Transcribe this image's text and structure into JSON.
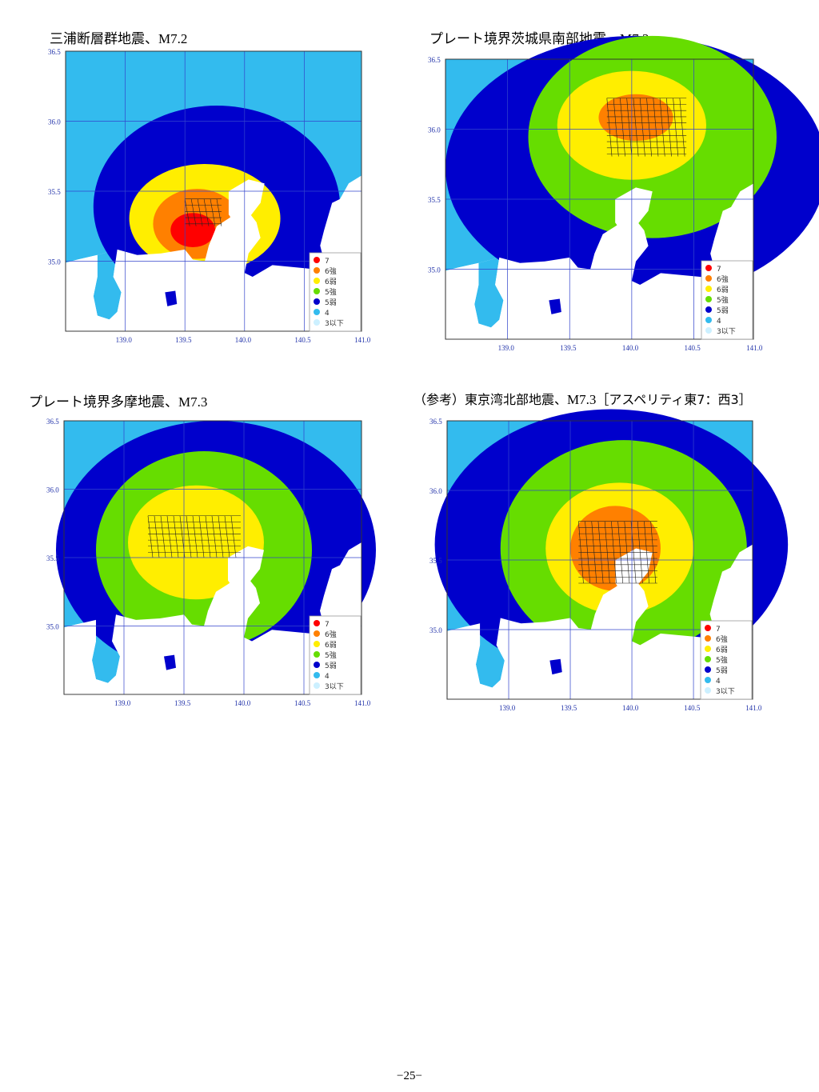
{
  "page_number": "−25−",
  "legend_items": [
    {
      "label": "7",
      "color": "#ff0000"
    },
    {
      "label": "6強",
      "color": "#ff8000"
    },
    {
      "label": "6弱",
      "color": "#ffee00"
    },
    {
      "label": "5強",
      "color": "#66dd00"
    },
    {
      "label": "5弱",
      "color": "#0000cc"
    },
    {
      "label": "4",
      "color": "#33bbee"
    },
    {
      "label": "3以下",
      "color": "#ccf0ff"
    }
  ],
  "colors": {
    "sea": "#ffffff",
    "grid": "#3344cc",
    "fault_grid": "#222222"
  },
  "maps": [
    {
      "title_jp": "三浦断層群地震、",
      "title_mag": "M7.2",
      "lon_ticks": [
        "139.0",
        "139.5",
        "140.0",
        "140.5",
        "141.0"
      ],
      "lat_ticks": [
        "36.5",
        "36.0",
        "35.5",
        "35.0"
      ],
      "icons": [
        "intensity-map",
        "fault-grid-icon"
      ]
    },
    {
      "title_jp": "プレート境界茨城県南部地震、",
      "title_mag": "M7.3",
      "lon_ticks": [
        "139.0",
        "139.5",
        "140.0",
        "140.5",
        "141.0"
      ],
      "lat_ticks": [
        "36.5",
        "36.0",
        "35.5",
        "35.0"
      ],
      "icons": [
        "intensity-map",
        "fault-grid-icon"
      ]
    },
    {
      "title_jp": "プレート境界多摩地震、",
      "title_mag": "M7.3",
      "lon_ticks": [
        "139.0",
        "139.5",
        "140.0",
        "140.5",
        "141.0"
      ],
      "lat_ticks": [
        "36.5",
        "36.0",
        "35.5",
        "35.0"
      ],
      "icons": [
        "intensity-map",
        "fault-grid-icon"
      ]
    },
    {
      "title_jp": "（参考）東京湾北部地震、",
      "title_mag": "M7.3",
      "title_suffix": "［アスペリティ東7：西3］",
      "lon_ticks": [
        "139.0",
        "139.5",
        "140.0",
        "140.5",
        "141.0"
      ],
      "lat_ticks": [
        "36.5",
        "36.0",
        "35.5",
        "35.0"
      ],
      "icons": [
        "intensity-map",
        "fault-grid-icon"
      ]
    }
  ]
}
